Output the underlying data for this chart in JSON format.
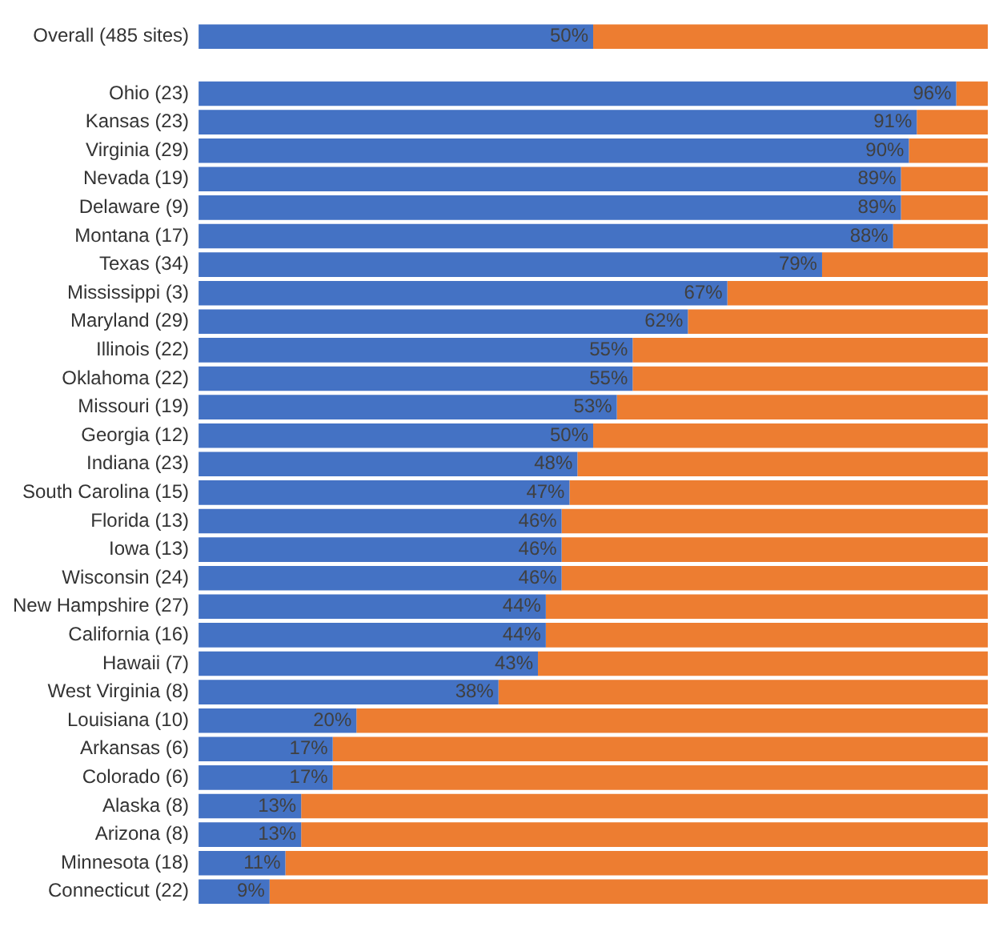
{
  "chart_data": {
    "type": "bar",
    "orientation": "horizontal",
    "stacked": true,
    "categories": [
      "Overall (485 sites)",
      null,
      "Ohio (23)",
      "Kansas (23)",
      "Virginia (29)",
      "Nevada (19)",
      "Delaware (9)",
      "Montana (17)",
      "Texas (34)",
      "Mississippi (3)",
      "Maryland (29)",
      "Illinois (22)",
      "Oklahoma (22)",
      "Missouri (19)",
      "Georgia (12)",
      "Indiana (23)",
      "South Carolina (15)",
      "Florida (13)",
      "Iowa (13)",
      "Wisconsin (24)",
      "New Hampshire (27)",
      "California (16)",
      "Hawaii (7)",
      "West Virginia (8)",
      "Louisiana (10)",
      "Arkansas (6)",
      "Colorado (6)",
      "Alaska (8)",
      "Arizona (8)",
      "Minnesota (18)",
      "Connecticut (22)"
    ],
    "series": [
      {
        "color": "#4472c4",
        "values": [
          50,
          null,
          96,
          91,
          90,
          89,
          89,
          88,
          79,
          67,
          62,
          55,
          55,
          53,
          50,
          48,
          47,
          46,
          46,
          46,
          44,
          44,
          43,
          38,
          20,
          17,
          17,
          13,
          13,
          11,
          9
        ],
        "value_labels": [
          "50%",
          null,
          "96%",
          "91%",
          "90%",
          "89%",
          "89%",
          "88%",
          "79%",
          "67%",
          "62%",
          "55%",
          "55%",
          "53%",
          "50%",
          "48%",
          "47%",
          "46%",
          "46%",
          "46%",
          "44%",
          "44%",
          "43%",
          "38%",
          "20%",
          "17%",
          "17%",
          "13%",
          "13%",
          "11%",
          "9%"
        ]
      },
      {
        "color": "#ed7d31",
        "values": [
          50,
          null,
          4,
          9,
          10,
          11,
          11,
          12,
          21,
          33,
          38,
          45,
          45,
          47,
          50,
          52,
          53,
          54,
          54,
          54,
          56,
          56,
          57,
          62,
          80,
          83,
          83,
          87,
          87,
          89,
          91
        ]
      }
    ],
    "xlim": [
      0,
      100
    ],
    "tick_labels": "y"
  }
}
